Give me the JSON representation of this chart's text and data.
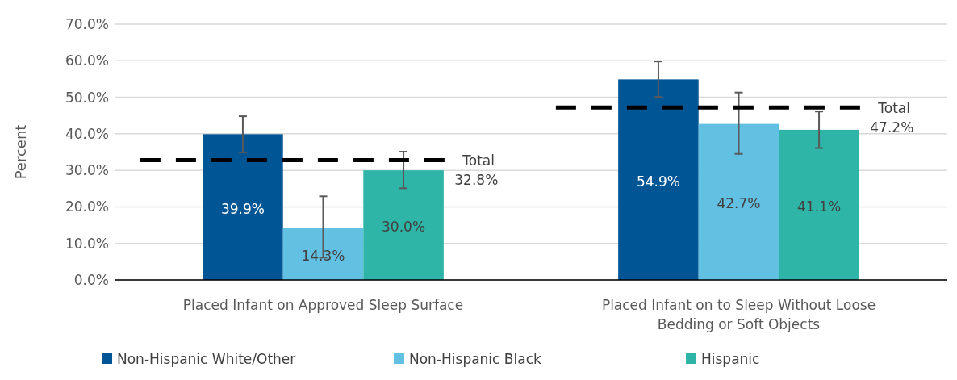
{
  "chart_data": {
    "type": "bar",
    "ylabel": "Percent",
    "categories": [
      "Placed Infant on Approved Sleep Surface",
      "Placed Infant on to Sleep Without Loose Bedding or Soft Objects"
    ],
    "series": [
      {
        "name": "Non-Hispanic White/Other",
        "color": "#005595",
        "values": [
          39.9,
          54.9
        ],
        "value_labels": [
          "39.9%",
          "54.9%"
        ],
        "errors": [
          [
            34.9,
            44.8
          ],
          [
            50.1,
            59.8
          ]
        ]
      },
      {
        "name": "Non-Hispanic Black",
        "color": "#62c0e2",
        "values": [
          14.3,
          42.7
        ],
        "value_labels": [
          "14.3%",
          "42.7%"
        ],
        "errors": [
          [
            6.1,
            22.9
          ],
          [
            34.5,
            51.3
          ]
        ]
      },
      {
        "name": "Hispanic",
        "color": "#2fb5a7",
        "values": [
          30.0,
          41.1
        ],
        "value_labels": [
          "30.0%",
          "41.1%"
        ],
        "errors": [
          [
            25.1,
            35.1
          ],
          [
            36.1,
            46.1
          ]
        ]
      }
    ],
    "ylim": [
      0,
      70
    ],
    "yticks": [
      {
        "value": 0,
        "label": "0.0%"
      },
      {
        "value": 10,
        "label": "10.0%"
      },
      {
        "value": 20,
        "label": "20.0%"
      },
      {
        "value": 30,
        "label": "30.0%"
      },
      {
        "value": 40,
        "label": "40.0%"
      },
      {
        "value": 50,
        "label": "50.0%"
      },
      {
        "value": 60,
        "label": "60.0%"
      },
      {
        "value": 70,
        "label": "70.0%"
      }
    ],
    "grid": "y",
    "legend": "bottom",
    "ref_lines": [
      {
        "axis": "y",
        "value": 32.8,
        "label": "Total 32.8%",
        "color": "#000000",
        "line_style": "dashed"
      },
      {
        "axis": "y",
        "value": 47.2,
        "label": "Total 47.2%",
        "color": "#000000",
        "line_style": "dashed"
      }
    ]
  }
}
